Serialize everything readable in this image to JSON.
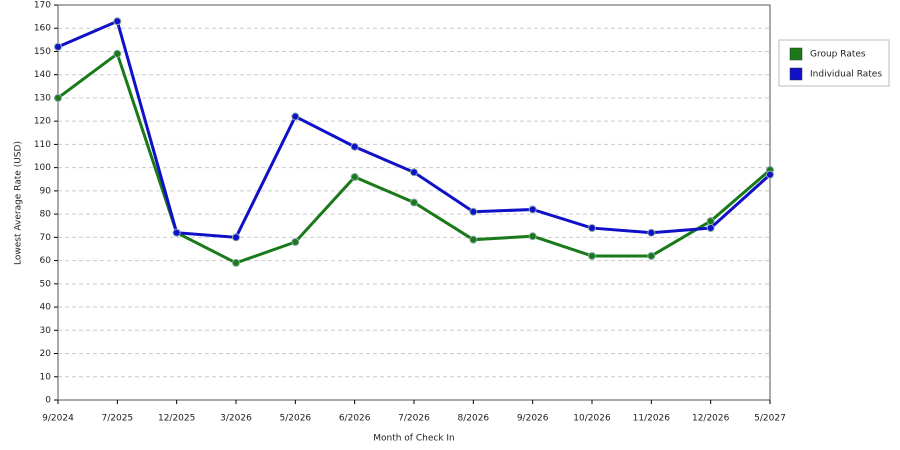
{
  "chart_data": {
    "type": "line",
    "x_label": "Month of Check In",
    "y_label": "Lowest Average Rate (USD)",
    "categories": [
      "9/2024",
      "7/2025",
      "12/2025",
      "3/2026",
      "5/2026",
      "6/2026",
      "7/2026",
      "8/2026",
      "9/2026",
      "10/2026",
      "11/2026",
      "12/2026",
      "5/2027"
    ],
    "series": [
      {
        "name": "Group Rates",
        "color": "#1a7a1a",
        "values": [
          130,
          149,
          72,
          59,
          68,
          96,
          85,
          69,
          70.5,
          62,
          62,
          77,
          99
        ]
      },
      {
        "name": "Individual Rates",
        "color": "#1010c8",
        "values": [
          152,
          163,
          72,
          70,
          122,
          109,
          98,
          81,
          82,
          74,
          72,
          74,
          97
        ]
      }
    ],
    "ylim": [
      0,
      170
    ],
    "yticks": [
      0,
      10,
      20,
      30,
      40,
      50,
      60,
      70,
      80,
      90,
      100,
      110,
      120,
      130,
      140,
      150,
      160,
      170
    ],
    "grid": true,
    "legend": "right"
  }
}
